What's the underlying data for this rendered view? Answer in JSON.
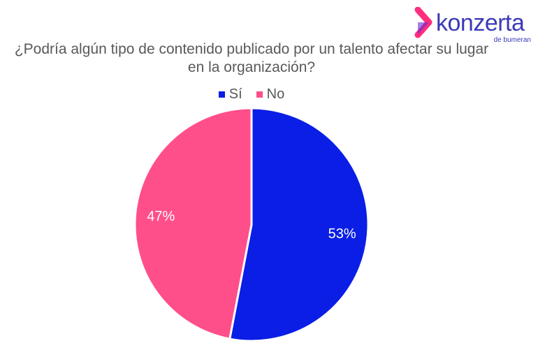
{
  "logo": {
    "brand": "konzerta",
    "sub": "de bumeran",
    "colors": [
      "#ff2e7e",
      "#3a3ab8"
    ]
  },
  "chart_data": {
    "type": "pie",
    "title": "¿Podría algún tipo de contenido publicado por un talento afectar su lugar en la organización?",
    "legend_position": "top",
    "series": [
      {
        "name": "Sí",
        "value": 53,
        "label": "53%",
        "color": "#0a1ee6"
      },
      {
        "name": "No",
        "value": 47,
        "label": "47%",
        "color": "#ff4f8b"
      }
    ]
  }
}
